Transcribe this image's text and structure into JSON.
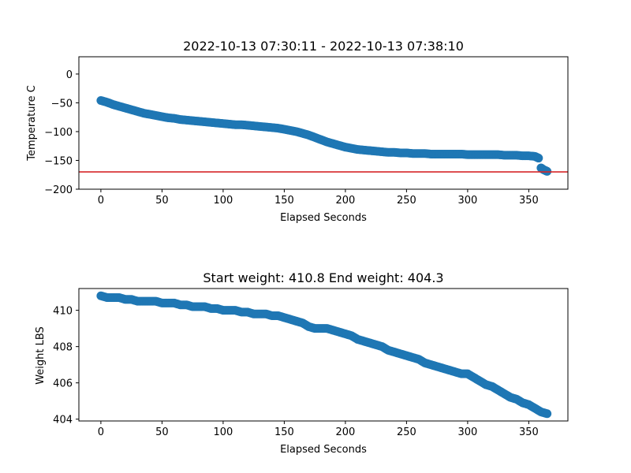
{
  "chart_data": [
    {
      "type": "scatter",
      "title": "2022-10-13 07:30:11 - 2022-10-13 07:38:10",
      "xlabel": "Elapsed Seconds",
      "ylabel": "Temperature C",
      "xlim": [
        -18,
        382
      ],
      "ylim": [
        -200,
        30
      ],
      "xticks": [
        0,
        50,
        100,
        150,
        200,
        250,
        300,
        350
      ],
      "xtick_labels": [
        "0",
        "50",
        "100",
        "150",
        "200",
        "250",
        "300",
        "350"
      ],
      "yticks": [
        -200,
        -150,
        -100,
        -50,
        0
      ],
      "ytick_labels": [
        "−200",
        "−150",
        "−100",
        "−50",
        "0"
      ],
      "series_color": "#1f77b4",
      "hline": {
        "y": -170,
        "color": "#d62728"
      },
      "series": [
        {
          "x": [
            0,
            5,
            10,
            15,
            20,
            25,
            30,
            35,
            40,
            45,
            50,
            55,
            60,
            65,
            70,
            75,
            80,
            85,
            90,
            95,
            100,
            105,
            110,
            115,
            120,
            125,
            130,
            135,
            140,
            145,
            150,
            155,
            160,
            165,
            170,
            175,
            180,
            185,
            190,
            195,
            200,
            205,
            210,
            215,
            220,
            225,
            230,
            235,
            240,
            245,
            250,
            255,
            260,
            265,
            270,
            275,
            280,
            285,
            290,
            295,
            300,
            305,
            310,
            315,
            320,
            325,
            330,
            335,
            340,
            345,
            350,
            355,
            358,
            360,
            362,
            365
          ],
          "y": [
            -46,
            -49,
            -53,
            -56,
            -59,
            -62,
            -65,
            -68,
            -70,
            -72,
            -74,
            -76,
            -77,
            -79,
            -80,
            -81,
            -82,
            -83,
            -84,
            -85,
            -86,
            -87,
            -88,
            -88,
            -89,
            -90,
            -91,
            -92,
            -93,
            -94,
            -96,
            -98,
            -100,
            -103,
            -106,
            -110,
            -114,
            -118,
            -121,
            -124,
            -127,
            -129,
            -131,
            -132,
            -133,
            -134,
            -135,
            -136,
            -136,
            -137,
            -137,
            -138,
            -138,
            -138,
            -139,
            -139,
            -139,
            -139,
            -139,
            -139,
            -140,
            -140,
            -140,
            -140,
            -140,
            -140,
            -141,
            -141,
            -141,
            -142,
            -142,
            -143,
            -146,
            -163,
            -166,
            -169
          ]
        }
      ]
    },
    {
      "type": "scatter",
      "title": "Start weight: 410.8 End weight: 404.3",
      "xlabel": "Elapsed Seconds",
      "ylabel": "Weight LBS",
      "xlim": [
        -18,
        382
      ],
      "ylim": [
        403.9,
        411.2
      ],
      "xticks": [
        0,
        50,
        100,
        150,
        200,
        250,
        300,
        350
      ],
      "xtick_labels": [
        "0",
        "50",
        "100",
        "150",
        "200",
        "250",
        "300",
        "350"
      ],
      "yticks": [
        404,
        406,
        408,
        410
      ],
      "ytick_labels": [
        "404",
        "406",
        "408",
        "410"
      ],
      "series_color": "#1f77b4",
      "series": [
        {
          "x": [
            0,
            5,
            10,
            15,
            20,
            25,
            30,
            35,
            40,
            45,
            50,
            55,
            60,
            65,
            70,
            75,
            80,
            85,
            90,
            95,
            100,
            105,
            110,
            115,
            120,
            125,
            130,
            135,
            140,
            145,
            150,
            155,
            160,
            165,
            170,
            175,
            180,
            185,
            190,
            195,
            200,
            205,
            210,
            215,
            220,
            225,
            230,
            235,
            240,
            245,
            250,
            255,
            260,
            265,
            270,
            275,
            280,
            285,
            290,
            295,
            300,
            305,
            310,
            315,
            320,
            325,
            330,
            335,
            340,
            345,
            350,
            355,
            360,
            365
          ],
          "y": [
            410.8,
            410.7,
            410.7,
            410.7,
            410.6,
            410.6,
            410.5,
            410.5,
            410.5,
            410.5,
            410.4,
            410.4,
            410.4,
            410.3,
            410.3,
            410.2,
            410.2,
            410.2,
            410.1,
            410.1,
            410.0,
            410.0,
            410.0,
            409.9,
            409.9,
            409.8,
            409.8,
            409.8,
            409.7,
            409.7,
            409.6,
            409.5,
            409.4,
            409.3,
            409.1,
            409.0,
            409.0,
            409.0,
            408.9,
            408.8,
            408.7,
            408.6,
            408.4,
            408.3,
            408.2,
            408.1,
            408.0,
            407.8,
            407.7,
            407.6,
            407.5,
            407.4,
            407.3,
            407.1,
            407.0,
            406.9,
            406.8,
            406.7,
            406.6,
            406.5,
            406.5,
            406.3,
            406.1,
            405.9,
            405.8,
            405.6,
            405.4,
            405.2,
            405.1,
            404.9,
            404.8,
            404.6,
            404.4,
            404.3
          ]
        }
      ]
    }
  ]
}
